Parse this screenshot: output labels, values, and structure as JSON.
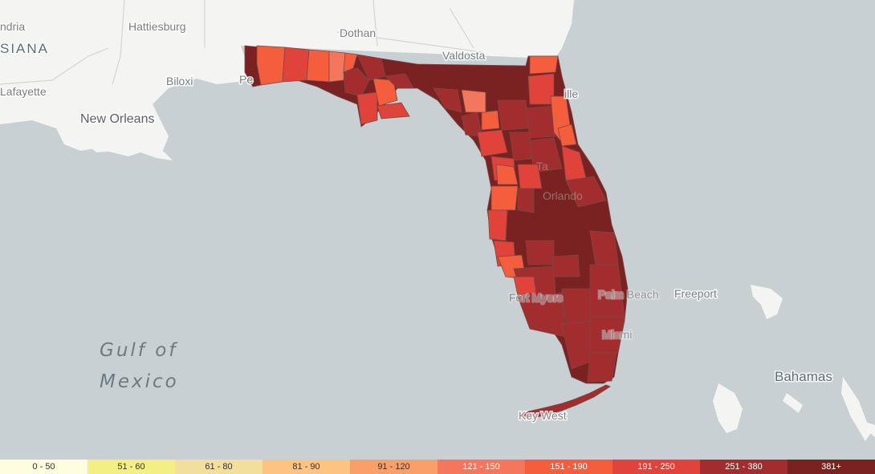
{
  "map": {
    "labels": {
      "alexandria": "ndria",
      "hattiesburg": "Hattiesburg",
      "dothan": "Dothan",
      "valdosta": "Valdosta",
      "louisiana": "SIANA",
      "biloxi": "Biloxi",
      "pensacola": "Pe",
      "lafayette": "Lafayette",
      "jacksonville": "ille",
      "new_orleans": "New Orleans",
      "tampa": "Ta",
      "orlando": "Orlando",
      "fort_myers": "Fort Myers",
      "palm_beach": "Palm Beach",
      "freeport": "Freeport",
      "miami": "Miami",
      "bahamas": "Bahamas",
      "key_west": "Key West",
      "gulf_line1": "Gulf of",
      "gulf_line2": "Mexico"
    }
  },
  "legend": {
    "bins": [
      {
        "label": "0 - 50",
        "color": "#fffde0",
        "text_color": "#333333"
      },
      {
        "label": "51 - 60",
        "color": "#f4ef85",
        "text_color": "#333333"
      },
      {
        "label": "61 - 80",
        "color": "#f2df9d",
        "text_color": "#333333"
      },
      {
        "label": "81 - 90",
        "color": "#fcc383",
        "text_color": "#333333"
      },
      {
        "label": "91 - 120",
        "color": "#f9a06a",
        "text_color": "#333333"
      },
      {
        "label": "121 - 150",
        "color": "#f4765d",
        "text_color": "#ffffff"
      },
      {
        "label": "151 - 190",
        "color": "#f45e3d",
        "text_color": "#ffffff"
      },
      {
        "label": "191 - 250",
        "color": "#df4339",
        "text_color": "#ffffff"
      },
      {
        "label": "251 - 380",
        "color": "#a22d2e",
        "text_color": "#ffffff"
      },
      {
        "label": "381+",
        "color": "#7a2222",
        "text_color": "#ffffff"
      }
    ]
  }
}
